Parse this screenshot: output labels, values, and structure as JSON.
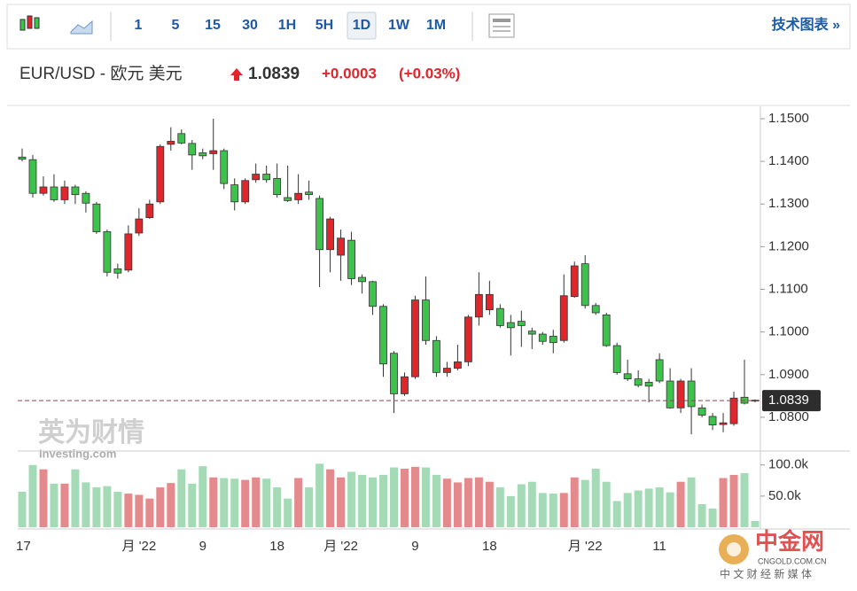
{
  "toolbar": {
    "intervals": [
      "1",
      "5",
      "15",
      "30",
      "1H",
      "5H",
      "1D",
      "1W",
      "1M"
    ],
    "active": "1D",
    "link": "技术图表 »"
  },
  "header": {
    "symbol": "EUR/USD - 欧元 美元",
    "price": 1.0839,
    "change": "+0.0003",
    "change_pct": "(+0.03%)"
  },
  "watermark": {
    "brand": "英为财情",
    "site": "Investing.com",
    "logo": "中金网",
    "logo_site": "CNGOLD.COM.CN",
    "logo_slogan": "中 文 财 经 新 媒 体"
  },
  "chart_data": {
    "type": "candlestick",
    "categories": [
      "17",
      null,
      null,
      null,
      null,
      null,
      null,
      null,
      null,
      null,
      null,
      "月 '22",
      null,
      null,
      null,
      null,
      null,
      "9",
      null,
      null,
      null,
      null,
      null,
      null,
      "18",
      null,
      null,
      null,
      null,
      null,
      "月 '22",
      null,
      null,
      null,
      null,
      null,
      null,
      "9",
      null,
      null,
      null,
      null,
      null,
      null,
      "18",
      null,
      null,
      null,
      null,
      null,
      null,
      null,
      null,
      "月 '22",
      null,
      null,
      null,
      null,
      null,
      null,
      "11",
      null,
      null,
      null,
      null,
      null,
      null,
      null,
      null,
      null
    ],
    "open": [
      1.141,
      1.1404,
      1.1325,
      1.134,
      1.131,
      1.134,
      1.1325,
      1.13,
      1.1235,
      1.1148,
      1.1145,
      1.1232,
      1.1268,
      1.1305,
      1.144,
      1.1465,
      1.1442,
      1.142,
      1.1418,
      1.1425,
      1.1345,
      1.1305,
      1.1357,
      1.137,
      1.136,
      1.1315,
      1.131,
      1.1328,
      1.1313,
      1.1193,
      1.118,
      1.1215,
      1.1128,
      1.1118,
      1.106,
      1.095,
      1.0855,
      1.0895,
      1.1075,
      1.098,
      1.0905,
      1.0915,
      1.093,
      1.1035,
      1.1052,
      1.1055,
      1.1022,
      1.1025,
      1.1002,
      1.0995,
      1.099,
      1.098,
      1.1083,
      1.116,
      1.1062,
      1.104,
      1.0968,
      1.0902,
      1.089,
      1.0882,
      1.0935,
      1.0885,
      1.0822,
      1.0885,
      1.0822,
      1.0802,
      1.0783,
      1.0785,
      1.0847,
      1.084
    ],
    "high": [
      1.143,
      1.1415,
      1.1365,
      1.137,
      1.1355,
      1.1345,
      1.133,
      1.1305,
      1.124,
      1.116,
      1.125,
      1.129,
      1.131,
      1.144,
      1.148,
      1.1475,
      1.145,
      1.143,
      1.15,
      1.143,
      1.136,
      1.136,
      1.1395,
      1.139,
      1.1395,
      1.139,
      1.137,
      1.1355,
      1.132,
      1.127,
      1.124,
      1.1235,
      1.1135,
      1.112,
      1.1065,
      1.0955,
      1.0905,
      1.1085,
      1.113,
      1.099,
      1.093,
      1.097,
      1.104,
      1.114,
      1.112,
      1.1065,
      1.104,
      1.105,
      1.101,
      1.1,
      1.1005,
      1.1135,
      1.1165,
      1.118,
      1.1068,
      1.1045,
      1.0975,
      1.0935,
      1.091,
      1.089,
      1.095,
      1.0915,
      1.089,
      1.0915,
      1.083,
      1.081,
      1.081,
      1.086,
      1.0935,
      1.0842
    ],
    "low": [
      1.14,
      1.1315,
      1.132,
      1.1305,
      1.13,
      1.13,
      1.128,
      1.123,
      1.113,
      1.1125,
      1.114,
      1.1225,
      1.1265,
      1.13,
      1.1425,
      1.144,
      1.138,
      1.1405,
      1.138,
      1.1335,
      1.1285,
      1.13,
      1.135,
      1.135,
      1.1315,
      1.1305,
      1.13,
      1.131,
      1.1105,
      1.114,
      1.112,
      1.111,
      1.109,
      1.104,
      1.0895,
      1.081,
      1.085,
      1.089,
      1.097,
      1.0895,
      1.0895,
      1.091,
      1.092,
      1.1015,
      1.104,
      1.101,
      1.0945,
      1.0965,
      1.096,
      1.097,
      1.095,
      1.0975,
      1.108,
      1.1055,
      1.104,
      1.0965,
      1.09,
      1.0885,
      1.087,
      1.0835,
      1.088,
      1.082,
      1.081,
      1.076,
      1.08,
      1.077,
      1.0765,
      1.078,
      1.083,
      1.0835
    ],
    "close": [
      1.1405,
      1.1325,
      1.134,
      1.131,
      1.134,
      1.1322,
      1.1302,
      1.1235,
      1.114,
      1.1138,
      1.123,
      1.1265,
      1.13,
      1.1435,
      1.1447,
      1.1443,
      1.1415,
      1.1413,
      1.1425,
      1.1348,
      1.1305,
      1.1355,
      1.137,
      1.1357,
      1.1322,
      1.1308,
      1.1325,
      1.1322,
      1.1193,
      1.1265,
      1.122,
      1.1125,
      1.1118,
      1.106,
      1.0925,
      1.0855,
      1.0895,
      1.1075,
      1.098,
      1.0905,
      1.0915,
      1.093,
      1.1035,
      1.1088,
      1.1088,
      1.1015,
      1.101,
      1.1015,
      1.0995,
      1.0978,
      1.0975,
      1.1085,
      1.1155,
      1.1062,
      1.1045,
      1.0968,
      1.0905,
      1.089,
      1.0875,
      1.0873,
      1.0885,
      1.0822,
      1.0885,
      1.0825,
      1.0805,
      1.0782,
      1.0787,
      1.0845,
      1.0833,
      1.0839
    ],
    "volume": [
      57000,
      100000,
      93000,
      70000,
      70000,
      93000,
      72000,
      64000,
      66000,
      57000,
      54000,
      52000,
      46000,
      64000,
      71000,
      93000,
      70000,
      98000,
      80000,
      79000,
      78000,
      76000,
      80000,
      78000,
      64000,
      46000,
      79000,
      64000,
      102000,
      93000,
      80000,
      89000,
      84000,
      80000,
      84000,
      96000,
      94000,
      97000,
      96000,
      84000,
      78000,
      72000,
      79000,
      80000,
      73000,
      64000,
      50000,
      69000,
      73000,
      55000,
      54000,
      55000,
      80000,
      76000,
      94000,
      73000,
      42000,
      55000,
      59000,
      62000,
      64000,
      56000,
      73000,
      80000,
      37000,
      30000,
      79000,
      84000,
      87000,
      10000
    ],
    "last": 1.0839,
    "ylim": [
      1.0723,
      1.1529
    ],
    "yticks": [
      {
        "value": 1.08,
        "label": "1.0800"
      },
      {
        "value": 1.09,
        "label": "1.0900"
      },
      {
        "value": 1.1,
        "label": "1.1000"
      },
      {
        "value": 1.11,
        "label": "1.1100"
      },
      {
        "value": 1.12,
        "label": "1.1200"
      },
      {
        "value": 1.13,
        "label": "1.1300"
      },
      {
        "value": 1.14,
        "label": "1.1400"
      },
      {
        "value": 1.15,
        "label": "1.1500"
      }
    ],
    "volume_ylim": [
      0,
      121000
    ],
    "volume_yticks": [
      {
        "value": 50000,
        "label": "50.0k"
      },
      {
        "value": 100000,
        "label": "100.0k"
      }
    ],
    "up_color": "#e0262b",
    "down_color": "#3dc24b",
    "volume_up_color": "#e58a8c",
    "volume_down_color": "#a5dab6"
  }
}
